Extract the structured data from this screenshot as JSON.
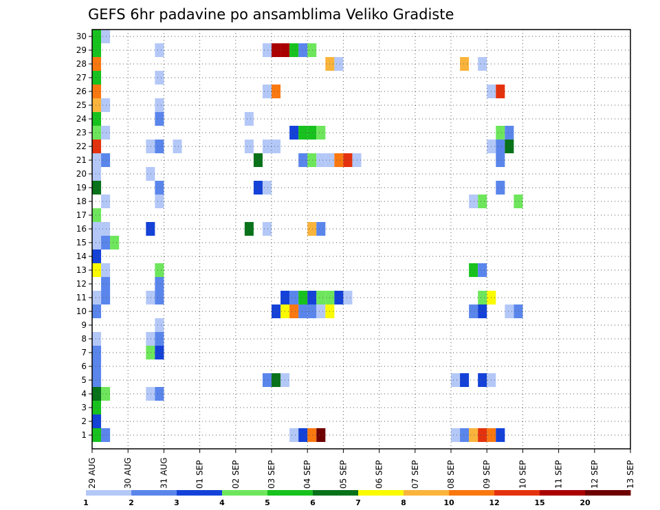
{
  "chart_data": {
    "type": "heatmap",
    "title": "GEFS 6hr padavine po ansamblima Veliko Gradiste",
    "xlabel": "",
    "ylabel": "",
    "y_members": [
      1,
      30
    ],
    "y_tick_labels": [
      "1",
      "2",
      "3",
      "4",
      "5",
      "6",
      "7",
      "8",
      "9",
      "10",
      "11",
      "12",
      "13",
      "14",
      "15",
      "16",
      "17",
      "18",
      "19",
      "20",
      "21",
      "22",
      "23",
      "24",
      "25",
      "26",
      "27",
      "28",
      "29",
      "30"
    ],
    "x_tick_labels": [
      "29 AUG",
      "30 AUG",
      "31 AUG",
      "01 SEP",
      "02 SEP",
      "03 SEP",
      "04 SEP",
      "05 SEP",
      "06 SEP",
      "07 SEP",
      "08 SEP",
      "09 SEP",
      "10 SEP",
      "11 SEP",
      "12 SEP",
      "13 SEP"
    ],
    "x_range_days": [
      0,
      15
    ],
    "step_hours": 6,
    "grid": true,
    "colorbar": {
      "levels": [
        "1",
        "2",
        "3",
        "4",
        "5",
        "6",
        "7",
        "8",
        "10",
        "12",
        "15",
        "20"
      ],
      "colors": [
        "#b4c8f8",
        "#5a86ec",
        "#1442d8",
        "#6ee65c",
        "#18c21e",
        "#08721a",
        "#fafa00",
        "#fab43c",
        "#fa7810",
        "#e4320e",
        "#aa0000",
        "#6e0000"
      ]
    },
    "cells": [
      {
        "m": 30,
        "t": 0,
        "c": 4
      },
      {
        "m": 30,
        "t": 1,
        "c": 0
      },
      {
        "m": 29,
        "t": 0,
        "c": 4
      },
      {
        "m": 29,
        "t": 7,
        "c": 0
      },
      {
        "m": 29,
        "t": 19,
        "c": 0
      },
      {
        "m": 29,
        "t": 20,
        "c": 10
      },
      {
        "m": 29,
        "t": 21,
        "c": 10
      },
      {
        "m": 29,
        "t": 22,
        "c": 4
      },
      {
        "m": 29,
        "t": 23,
        "c": 1
      },
      {
        "m": 29,
        "t": 24,
        "c": 3
      },
      {
        "m": 28,
        "t": 0,
        "c": 8
      },
      {
        "m": 28,
        "t": 26,
        "c": 7
      },
      {
        "m": 28,
        "t": 27,
        "c": 0
      },
      {
        "m": 28,
        "t": 41,
        "c": 7
      },
      {
        "m": 28,
        "t": 43,
        "c": 0
      },
      {
        "m": 27,
        "t": 0,
        "c": 4
      },
      {
        "m": 27,
        "t": 7,
        "c": 0
      },
      {
        "m": 26,
        "t": 0,
        "c": 8
      },
      {
        "m": 26,
        "t": 19,
        "c": 0
      },
      {
        "m": 26,
        "t": 20,
        "c": 8
      },
      {
        "m": 26,
        "t": 44,
        "c": 0
      },
      {
        "m": 26,
        "t": 45,
        "c": 9
      },
      {
        "m": 25,
        "t": 0,
        "c": 7
      },
      {
        "m": 25,
        "t": 1,
        "c": 0
      },
      {
        "m": 25,
        "t": 7,
        "c": 0
      },
      {
        "m": 24,
        "t": 0,
        "c": 4
      },
      {
        "m": 24,
        "t": 7,
        "c": 1
      },
      {
        "m": 24,
        "t": 17,
        "c": 0
      },
      {
        "m": 23,
        "t": 0,
        "c": 3
      },
      {
        "m": 23,
        "t": 1,
        "c": 0
      },
      {
        "m": 23,
        "t": 22,
        "c": 2
      },
      {
        "m": 23,
        "t": 23,
        "c": 4
      },
      {
        "m": 23,
        "t": 24,
        "c": 4
      },
      {
        "m": 23,
        "t": 25,
        "c": 3
      },
      {
        "m": 23,
        "t": 45,
        "c": 3
      },
      {
        "m": 23,
        "t": 46,
        "c": 1
      },
      {
        "m": 22,
        "t": 0,
        "c": 9
      },
      {
        "m": 22,
        "t": 6,
        "c": 0
      },
      {
        "m": 22,
        "t": 7,
        "c": 1
      },
      {
        "m": 22,
        "t": 9,
        "c": 0
      },
      {
        "m": 22,
        "t": 17,
        "c": 0
      },
      {
        "m": 22,
        "t": 19,
        "c": 0
      },
      {
        "m": 22,
        "t": 20,
        "c": 0
      },
      {
        "m": 22,
        "t": 44,
        "c": 0
      },
      {
        "m": 22,
        "t": 45,
        "c": 1
      },
      {
        "m": 22,
        "t": 46,
        "c": 5
      },
      {
        "m": 21,
        "t": 0,
        "c": 0
      },
      {
        "m": 21,
        "t": 1,
        "c": 1
      },
      {
        "m": 21,
        "t": 18,
        "c": 5
      },
      {
        "m": 21,
        "t": 23,
        "c": 1
      },
      {
        "m": 21,
        "t": 24,
        "c": 3
      },
      {
        "m": 21,
        "t": 25,
        "c": 0
      },
      {
        "m": 21,
        "t": 26,
        "c": 0
      },
      {
        "m": 21,
        "t": 27,
        "c": 8
      },
      {
        "m": 21,
        "t": 28,
        "c": 9
      },
      {
        "m": 21,
        "t": 29,
        "c": 0
      },
      {
        "m": 21,
        "t": 45,
        "c": 1
      },
      {
        "m": 20,
        "t": 0,
        "c": 0
      },
      {
        "m": 20,
        "t": 6,
        "c": 0
      },
      {
        "m": 19,
        "t": 0,
        "c": 5
      },
      {
        "m": 19,
        "t": 7,
        "c": 1
      },
      {
        "m": 19,
        "t": 18,
        "c": 2
      },
      {
        "m": 19,
        "t": 19,
        "c": 0
      },
      {
        "m": 19,
        "t": 45,
        "c": 1
      },
      {
        "m": 18,
        "t": 1,
        "c": 0
      },
      {
        "m": 18,
        "t": 7,
        "c": 0
      },
      {
        "m": 18,
        "t": 42,
        "c": 0
      },
      {
        "m": 18,
        "t": 43,
        "c": 3
      },
      {
        "m": 18,
        "t": 47,
        "c": 3
      },
      {
        "m": 17,
        "t": 0,
        "c": 3
      },
      {
        "m": 16,
        "t": 0,
        "c": 0
      },
      {
        "m": 16,
        "t": 1,
        "c": 0
      },
      {
        "m": 16,
        "t": 6,
        "c": 2
      },
      {
        "m": 16,
        "t": 17,
        "c": 5
      },
      {
        "m": 16,
        "t": 19,
        "c": 0
      },
      {
        "m": 16,
        "t": 24,
        "c": 7
      },
      {
        "m": 16,
        "t": 25,
        "c": 1
      },
      {
        "m": 15,
        "t": 0,
        "c": 0
      },
      {
        "m": 15,
        "t": 1,
        "c": 1
      },
      {
        "m": 15,
        "t": 2,
        "c": 3
      },
      {
        "m": 14,
        "t": 0,
        "c": 2
      },
      {
        "m": 13,
        "t": 0,
        "c": 6
      },
      {
        "m": 13,
        "t": 1,
        "c": 0
      },
      {
        "m": 13,
        "t": 7,
        "c": 3
      },
      {
        "m": 13,
        "t": 42,
        "c": 4
      },
      {
        "m": 13,
        "t": 43,
        "c": 1
      },
      {
        "m": 12,
        "t": 1,
        "c": 1
      },
      {
        "m": 12,
        "t": 7,
        "c": 1
      },
      {
        "m": 11,
        "t": 0,
        "c": 0
      },
      {
        "m": 11,
        "t": 1,
        "c": 1
      },
      {
        "m": 11,
        "t": 6,
        "c": 0
      },
      {
        "m": 11,
        "t": 7,
        "c": 1
      },
      {
        "m": 11,
        "t": 21,
        "c": 2
      },
      {
        "m": 11,
        "t": 22,
        "c": 1
      },
      {
        "m": 11,
        "t": 23,
        "c": 4
      },
      {
        "m": 11,
        "t": 24,
        "c": 2
      },
      {
        "m": 11,
        "t": 25,
        "c": 3
      },
      {
        "m": 11,
        "t": 26,
        "c": 3
      },
      {
        "m": 11,
        "t": 27,
        "c": 2
      },
      {
        "m": 11,
        "t": 28,
        "c": 0
      },
      {
        "m": 11,
        "t": 43,
        "c": 3
      },
      {
        "m": 11,
        "t": 44,
        "c": 6
      },
      {
        "m": 10,
        "t": 0,
        "c": 1
      },
      {
        "m": 10,
        "t": 20,
        "c": 2
      },
      {
        "m": 10,
        "t": 21,
        "c": 6
      },
      {
        "m": 10,
        "t": 22,
        "c": 8
      },
      {
        "m": 10,
        "t": 23,
        "c": 1
      },
      {
        "m": 10,
        "t": 24,
        "c": 1
      },
      {
        "m": 10,
        "t": 25,
        "c": 0
      },
      {
        "m": 10,
        "t": 26,
        "c": 6
      },
      {
        "m": 10,
        "t": 42,
        "c": 1
      },
      {
        "m": 10,
        "t": 43,
        "c": 2
      },
      {
        "m": 10,
        "t": 46,
        "c": 0
      },
      {
        "m": 10,
        "t": 47,
        "c": 1
      },
      {
        "m": 9,
        "t": 7,
        "c": 0
      },
      {
        "m": 8,
        "t": 0,
        "c": 0
      },
      {
        "m": 8,
        "t": 6,
        "c": 0
      },
      {
        "m": 8,
        "t": 7,
        "c": 1
      },
      {
        "m": 7,
        "t": 0,
        "c": 1
      },
      {
        "m": 7,
        "t": 6,
        "c": 3
      },
      {
        "m": 7,
        "t": 7,
        "c": 2
      },
      {
        "m": 6,
        "t": 0,
        "c": 1
      },
      {
        "m": 5,
        "t": 0,
        "c": 1
      },
      {
        "m": 5,
        "t": 19,
        "c": 1
      },
      {
        "m": 5,
        "t": 20,
        "c": 5
      },
      {
        "m": 5,
        "t": 21,
        "c": 0
      },
      {
        "m": 5,
        "t": 40,
        "c": 0
      },
      {
        "m": 5,
        "t": 41,
        "c": 2
      },
      {
        "m": 5,
        "t": 43,
        "c": 2
      },
      {
        "m": 5,
        "t": 44,
        "c": 0
      },
      {
        "m": 4,
        "t": 0,
        "c": 5
      },
      {
        "m": 4,
        "t": 1,
        "c": 3
      },
      {
        "m": 4,
        "t": 6,
        "c": 0
      },
      {
        "m": 4,
        "t": 7,
        "c": 1
      },
      {
        "m": 3,
        "t": 0,
        "c": 4
      },
      {
        "m": 2,
        "t": 0,
        "c": 2
      },
      {
        "m": 1,
        "t": 0,
        "c": 4
      },
      {
        "m": 1,
        "t": 1,
        "c": 1
      },
      {
        "m": 1,
        "t": 22,
        "c": 0
      },
      {
        "m": 1,
        "t": 23,
        "c": 2
      },
      {
        "m": 1,
        "t": 24,
        "c": 8
      },
      {
        "m": 1,
        "t": 25,
        "c": 11
      },
      {
        "m": 1,
        "t": 40,
        "c": 0
      },
      {
        "m": 1,
        "t": 41,
        "c": 1
      },
      {
        "m": 1,
        "t": 42,
        "c": 7
      },
      {
        "m": 1,
        "t": 43,
        "c": 9
      },
      {
        "m": 1,
        "t": 44,
        "c": 8
      },
      {
        "m": 1,
        "t": 45,
        "c": 2
      }
    ]
  }
}
